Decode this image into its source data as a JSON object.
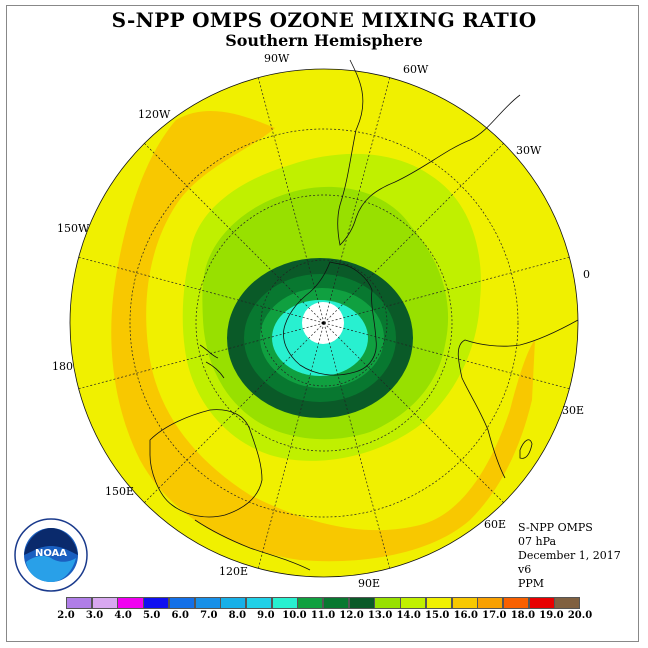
{
  "title": "S-NPP OMPS OZONE MIXING RATIO",
  "subtitle": "Southern Hemisphere",
  "longitude_labels": [
    "90W",
    "60W",
    "30W",
    "0",
    "30E",
    "60E",
    "90E",
    "120E",
    "150E",
    "180",
    "150W",
    "120W"
  ],
  "info": {
    "instrument": "S-NPP OMPS",
    "level": "07 hPa",
    "date": "December 1, 2017",
    "version": "v6",
    "units": "PPM"
  },
  "logo_text": "NOAA",
  "colorbar": {
    "ticks": [
      "2.0",
      "3.0",
      "4.0",
      "5.0",
      "6.0",
      "7.0",
      "8.0",
      "9.0",
      "10.0",
      "11.0",
      "12.0",
      "13.0",
      "14.0",
      "15.0",
      "16.0",
      "17.0",
      "18.0",
      "19.0",
      "20.0"
    ],
    "colors": [
      "#b07ee8",
      "#d8a8f0",
      "#f000f0",
      "#1010f0",
      "#1470e8",
      "#1890e8",
      "#18b0e8",
      "#20d0e8",
      "#28f0d0",
      "#10a040",
      "#087830",
      "#0a5a28",
      "#98e000",
      "#c0f000",
      "#f0f000",
      "#f8c800",
      "#f8a000",
      "#f86000",
      "#e80000",
      "#806040"
    ]
  },
  "chart_data": {
    "type": "polar-stereographic-contour-map",
    "hemisphere": "Southern Hemisphere",
    "variable": "Ozone mixing ratio",
    "units": "PPM",
    "pressure_level": "07 hPa",
    "date": "December 1, 2017",
    "levels": [
      2,
      3,
      4,
      5,
      6,
      7,
      8,
      9,
      10,
      11,
      12,
      13,
      14,
      15,
      16,
      17,
      18,
      19,
      20
    ],
    "regions": [
      {
        "range": "< 9.0",
        "location": "south pole center",
        "color": "#ffffff"
      },
      {
        "range": "9.0-10.0",
        "location": "over East Antarctica",
        "color": "#28f0d0"
      },
      {
        "range": "10.0-11.0",
        "location": "ring around pole",
        "color": "#10a040"
      },
      {
        "range": "11.0-12.0",
        "location": "outer vortex ring",
        "color": "#087830"
      },
      {
        "range": "12.0-13.0",
        "location": "surrounding vortex",
        "color": "#0a5a28"
      },
      {
        "range": "13.0-14.0",
        "location": "mid-latitudes",
        "color": "#98e000"
      },
      {
        "range": "14.0-15.0",
        "location": "mid-latitudes",
        "color": "#c0f000"
      },
      {
        "range": "15.0-16.0",
        "location": "bulk of domain",
        "color": "#f0f000"
      },
      {
        "range": "16.0-17.0",
        "location": "subtropical band",
        "color": "#f8c800"
      }
    ]
  }
}
